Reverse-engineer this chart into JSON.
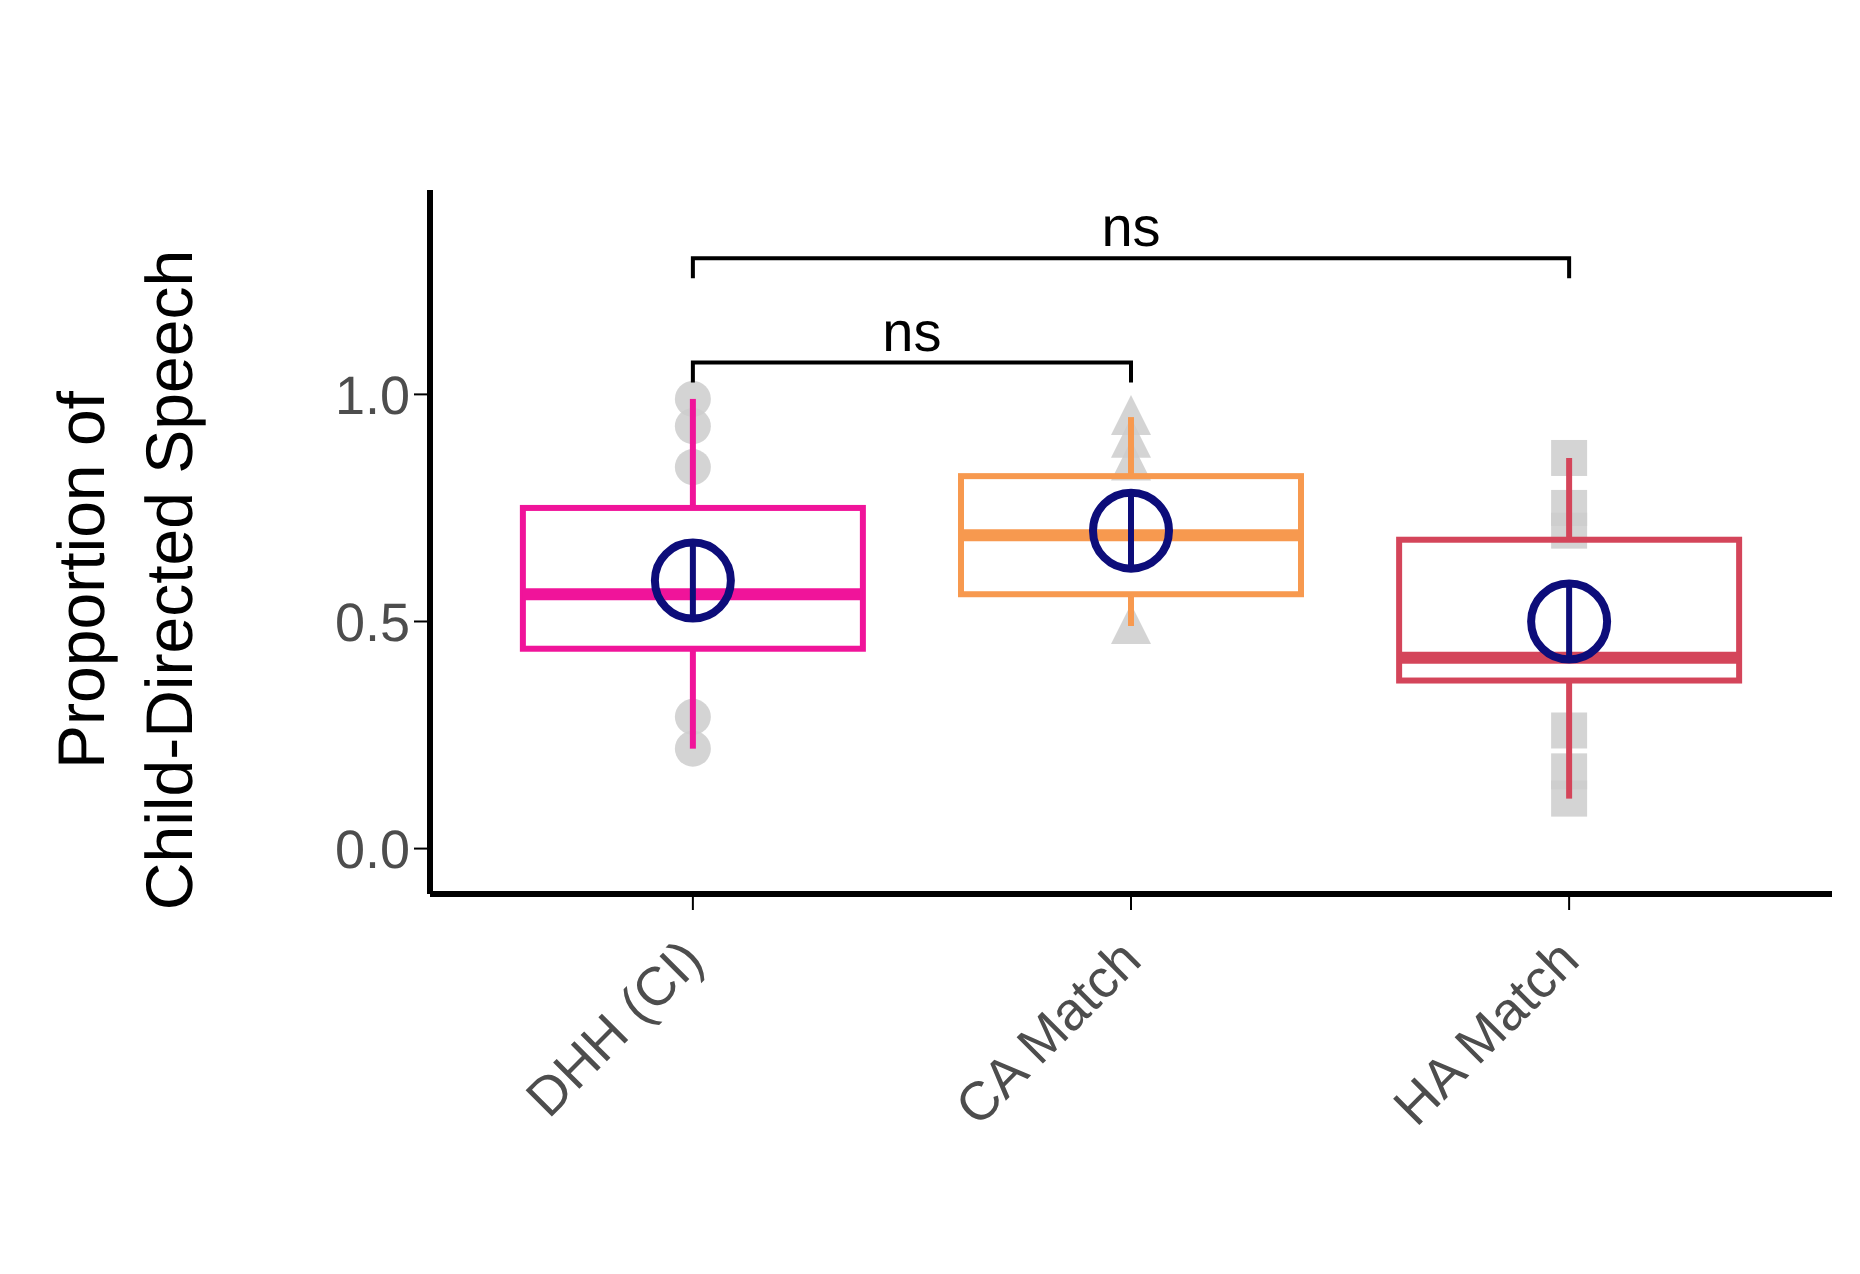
{
  "chart_data": {
    "type": "box",
    "ylabel": "Proportion of\nChild-Directed Speech",
    "categories": [
      "DHH (CI)",
      "CA Match",
      "HA Match"
    ],
    "colors": [
      "#f0149a",
      "#f7994f",
      "#d4455a"
    ],
    "boxes": [
      {
        "low": 0.22,
        "q1": 0.44,
        "median": 0.56,
        "q3": 0.75,
        "high": 0.99,
        "mean": 0.59
      },
      {
        "low": 0.49,
        "q1": 0.56,
        "median": 0.69,
        "q3": 0.82,
        "high": 0.95,
        "mean": 0.7
      },
      {
        "low": 0.11,
        "q1": 0.37,
        "median": 0.42,
        "q3": 0.68,
        "high": 0.86,
        "mean": 0.5
      }
    ],
    "series": [
      {
        "type": "scatter",
        "marker": "circle",
        "color": "#cccccc",
        "x": [
          "DHH (CI)",
          "DHH (CI)",
          "DHH (CI)",
          "DHH (CI)",
          "DHH (CI)"
        ],
        "values": [
          0.99,
          0.93,
          0.84,
          0.29,
          0.22
        ]
      },
      {
        "type": "scatter",
        "marker": "triangle",
        "color": "#cccccc",
        "x": [
          "CA Match",
          "CA Match",
          "CA Match",
          "CA Match",
          "CA Match"
        ],
        "values": [
          0.95,
          0.9,
          0.85,
          null,
          0.49
        ]
      },
      {
        "type": "scatter",
        "marker": "square",
        "color": "#cccccc",
        "x": [
          "HA Match",
          "HA Match",
          "HA Match",
          "HA Match",
          "HA Match",
          "HA Match"
        ],
        "values": [
          0.86,
          0.75,
          0.7,
          0.26,
          0.17,
          0.11
        ]
      }
    ],
    "ylim": [
      -0.1,
      1.45
    ],
    "yticks": [
      {
        "value": 0,
        "label": "0.0"
      },
      {
        "value": 0.5,
        "label": "0.5"
      },
      {
        "value": 1,
        "label": "1.0"
      }
    ],
    "annotations": [
      "ns",
      "ns"
    ],
    "grid": false,
    "legend": false
  }
}
